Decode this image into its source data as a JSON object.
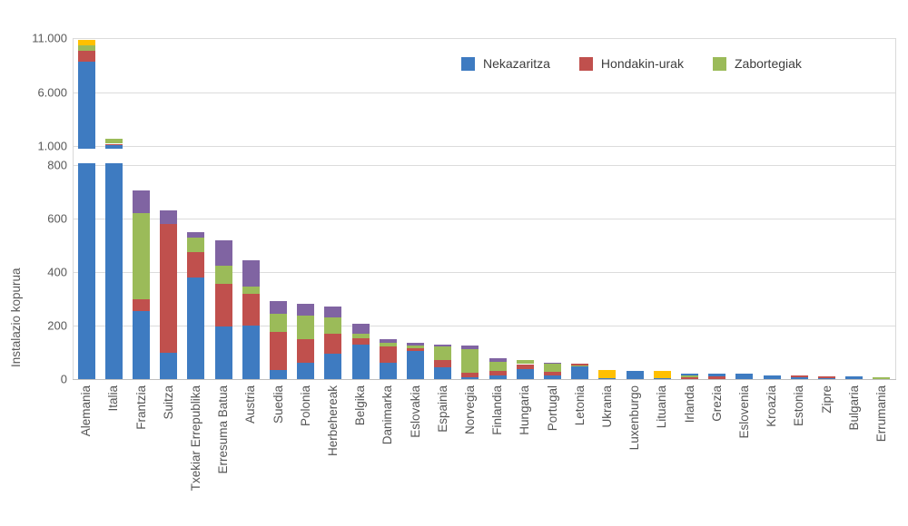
{
  "chart_data": {
    "type": "bar",
    "stacked": true,
    "broken_axis": true,
    "title": "",
    "ylabel": "Instalazio kopurua",
    "xlabel": "",
    "grid": true,
    "legend_position": "top-right-inside",
    "axis": {
      "lower_range": [
        0,
        800
      ],
      "upper_range": [
        1000,
        11000
      ],
      "lower_ticks": [
        {
          "v": 0,
          "label": "0"
        },
        {
          "v": 200,
          "label": "200"
        },
        {
          "v": 400,
          "label": "400"
        },
        {
          "v": 600,
          "label": "600"
        },
        {
          "v": 800,
          "label": "800"
        }
      ],
      "upper_ticks": [
        {
          "v": 1000,
          "label": "1.000"
        },
        {
          "v": 6000,
          "label": "6.000"
        },
        {
          "v": 11000,
          "label": "11.000"
        }
      ]
    },
    "legend": [
      {
        "key": "blue",
        "label": "Nekazaritza"
      },
      {
        "key": "red",
        "label": "Hondakin-urak"
      },
      {
        "key": "green",
        "label": "Zabortegiak"
      }
    ],
    "colors": {
      "blue": "#3E7BC1",
      "red": "#C0504D",
      "green": "#9BBB59",
      "purple": "#8064A2",
      "yellow": "#FFC000"
    },
    "grid_color": "#DCDCDC",
    "axis_color": "#BFBFBF",
    "text_color": "#595959",
    "countries": [
      {
        "label": "Alemania",
        "segments": [
          [
            "blue",
            8800
          ],
          [
            "red",
            1050
          ],
          [
            "green",
            500
          ],
          [
            "yellow",
            450
          ]
        ]
      },
      {
        "label": "Italia",
        "segments": [
          [
            "blue",
            1150
          ],
          [
            "red",
            60
          ],
          [
            "green",
            440
          ]
        ]
      },
      {
        "label": "Frantzia",
        "segments": [
          [
            "blue",
            255
          ],
          [
            "red",
            45
          ],
          [
            "green",
            320
          ],
          [
            "purple",
            85
          ]
        ]
      },
      {
        "label": "Suitza",
        "segments": [
          [
            "blue",
            100
          ],
          [
            "red",
            480
          ],
          [
            "purple",
            50
          ]
        ]
      },
      {
        "label": "Txekiar Errepublika",
        "segments": [
          [
            "blue",
            380
          ],
          [
            "red",
            95
          ],
          [
            "green",
            55
          ],
          [
            "purple",
            20
          ]
        ]
      },
      {
        "label": "Erresuma Batua",
        "segments": [
          [
            "blue",
            195
          ],
          [
            "red",
            160
          ],
          [
            "green",
            68
          ],
          [
            "purple",
            95
          ]
        ]
      },
      {
        "label": "Austria",
        "segments": [
          [
            "blue",
            200
          ],
          [
            "red",
            120
          ],
          [
            "green",
            25
          ],
          [
            "purple",
            100
          ]
        ]
      },
      {
        "label": "Suedia",
        "segments": [
          [
            "blue",
            35
          ],
          [
            "red",
            140
          ],
          [
            "green",
            70
          ],
          [
            "purple",
            45
          ]
        ]
      },
      {
        "label": "Polonia",
        "segments": [
          [
            "blue",
            60
          ],
          [
            "red",
            88
          ],
          [
            "green",
            90
          ],
          [
            "purple",
            42
          ]
        ]
      },
      {
        "label": "Herbehereak",
        "segments": [
          [
            "blue",
            95
          ],
          [
            "red",
            76
          ],
          [
            "green",
            58
          ],
          [
            "purple",
            41
          ]
        ]
      },
      {
        "label": "Belgika",
        "segments": [
          [
            "blue",
            130
          ],
          [
            "red",
            24
          ],
          [
            "green",
            17
          ],
          [
            "purple",
            37
          ]
        ]
      },
      {
        "label": "Danimarka",
        "segments": [
          [
            "blue",
            60
          ],
          [
            "red",
            61
          ],
          [
            "green",
            15
          ],
          [
            "purple",
            12
          ]
        ]
      },
      {
        "label": "Eslovakia",
        "segments": [
          [
            "blue",
            104
          ],
          [
            "red",
            11
          ],
          [
            "green",
            12
          ],
          [
            "purple",
            7
          ]
        ]
      },
      {
        "label": "Espainia",
        "segments": [
          [
            "blue",
            45
          ],
          [
            "red",
            27
          ],
          [
            "green",
            50
          ],
          [
            "purple",
            8
          ]
        ]
      },
      {
        "label": "Norvegia",
        "segments": [
          [
            "blue",
            8
          ],
          [
            "red",
            17
          ],
          [
            "green",
            87
          ],
          [
            "purple",
            12
          ]
        ]
      },
      {
        "label": "Finlandia",
        "segments": [
          [
            "blue",
            14
          ],
          [
            "red",
            15
          ],
          [
            "green",
            37
          ],
          [
            "purple",
            12
          ]
        ]
      },
      {
        "label": "Hungaria",
        "segments": [
          [
            "blue",
            37
          ],
          [
            "red",
            19
          ],
          [
            "green",
            14
          ]
        ]
      },
      {
        "label": "Portugal",
        "segments": [
          [
            "blue",
            15
          ],
          [
            "red",
            11
          ],
          [
            "green",
            32
          ],
          [
            "purple",
            3
          ]
        ]
      },
      {
        "label": "Letonia",
        "segments": [
          [
            "blue",
            48
          ],
          [
            "green",
            2
          ],
          [
            "red",
            6
          ]
        ]
      },
      {
        "label": "Ukrania",
        "segments": [
          [
            "blue",
            3
          ],
          [
            "yellow",
            30
          ]
        ]
      },
      {
        "label": "Luxenburgo",
        "segments": [
          [
            "blue",
            29
          ]
        ]
      },
      {
        "label": "Lituania",
        "segments": [
          [
            "blue",
            2
          ],
          [
            "yellow",
            28
          ]
        ]
      },
      {
        "label": "Irlanda",
        "segments": [
          [
            "red",
            7
          ],
          [
            "green",
            7
          ],
          [
            "blue",
            8
          ]
        ]
      },
      {
        "label": "Grezia",
        "segments": [
          [
            "red",
            9
          ],
          [
            "blue",
            13
          ]
        ]
      },
      {
        "label": "Eslovenia",
        "segments": [
          [
            "blue",
            20
          ]
        ]
      },
      {
        "label": "Kroazia",
        "segments": [
          [
            "blue",
            15
          ]
        ]
      },
      {
        "label": "Estonia",
        "segments": [
          [
            "blue",
            7
          ],
          [
            "red",
            6
          ]
        ]
      },
      {
        "label": "Zipre",
        "segments": [
          [
            "blue",
            5
          ],
          [
            "red",
            6
          ]
        ]
      },
      {
        "label": "Bulgaria",
        "segments": [
          [
            "blue",
            9
          ]
        ]
      },
      {
        "label": "Errumania",
        "segments": [
          [
            "green",
            8
          ]
        ]
      }
    ]
  }
}
